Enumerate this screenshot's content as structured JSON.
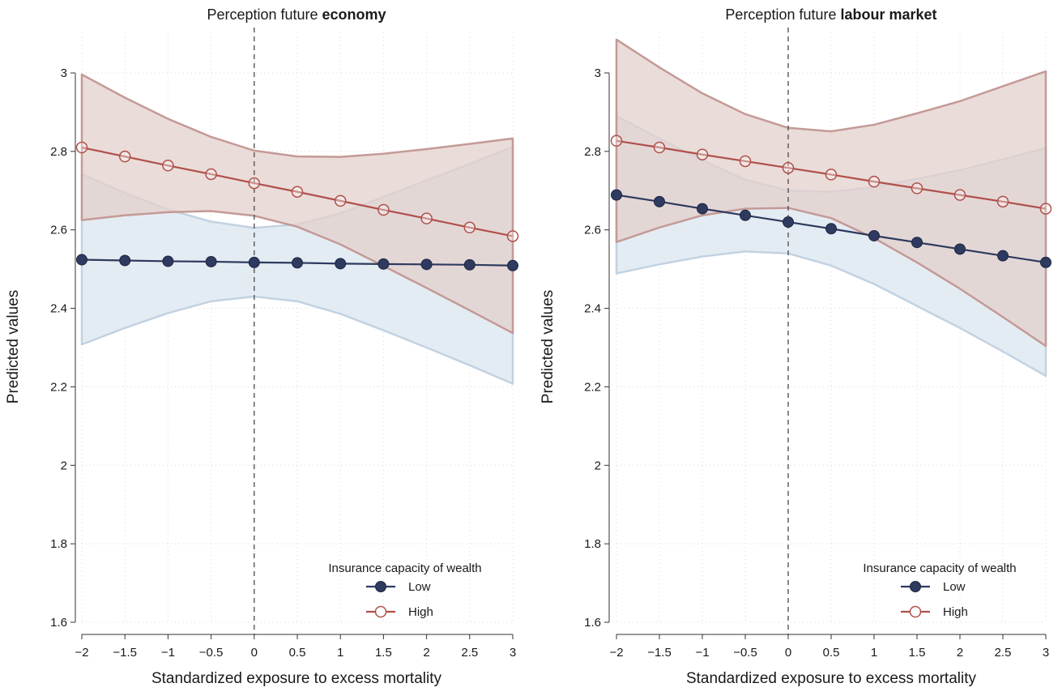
{
  "colors": {
    "low": "#2e3a5f",
    "low_band": "#dbe5ef",
    "low_band_edge": "#c2d2e2",
    "high": "#b0504a",
    "high_band": "#e3d0cc",
    "high_band_edge": "#c49a96",
    "grid": "#d8d8d8",
    "zero_line": "#555555"
  },
  "chart_data": [
    {
      "type": "line",
      "title_prefix": "Perception future ",
      "title_bold": "economy",
      "xlabel": "Standardized exposure to excess mortality",
      "ylabel": "Predicted values",
      "xlim": [
        -2,
        3
      ],
      "ylim": [
        1.6,
        3.1
      ],
      "x": [
        -2,
        -1.5,
        -1,
        -0.5,
        0,
        0.5,
        1,
        1.5,
        2,
        2.5,
        3
      ],
      "x_tick_labels": [
        "−2",
        "−1.5",
        "−1",
        "−0.5",
        "0",
        "0.5",
        "1",
        "1.5",
        "2",
        "2.5",
        "3"
      ],
      "y_ticks": [
        1.6,
        1.8,
        2,
        2.2,
        2.4,
        2.6,
        2.8,
        3
      ],
      "y_tick_labels": [
        "1.6",
        "1.8",
        "2",
        "2.2",
        "2.4",
        "2.6",
        "2.8",
        "3"
      ],
      "grid": true,
      "reference_line_x": 0,
      "legend": {
        "title": "Insurance capacity of wealth",
        "position": "bottom-right"
      },
      "series": [
        {
          "name": "Low",
          "marker": "filled-circle",
          "values": [
            2.524,
            2.522,
            2.52,
            2.519,
            2.517,
            2.516,
            2.514,
            2.513,
            2.512,
            2.511,
            2.509
          ],
          "ci_lower": [
            2.308,
            2.35,
            2.388,
            2.418,
            2.43,
            2.418,
            2.386,
            2.344,
            2.3,
            2.255,
            2.208
          ],
          "ci_upper": [
            2.742,
            2.694,
            2.652,
            2.621,
            2.605,
            2.614,
            2.642,
            2.684,
            2.726,
            2.768,
            2.812
          ]
        },
        {
          "name": "High",
          "marker": "hollow-circle",
          "values": [
            2.81,
            2.787,
            2.764,
            2.742,
            2.719,
            2.697,
            2.674,
            2.651,
            2.629,
            2.606,
            2.584
          ],
          "ci_lower": [
            2.625,
            2.637,
            2.645,
            2.648,
            2.636,
            2.608,
            2.563,
            2.508,
            2.452,
            2.395,
            2.337
          ],
          "ci_upper": [
            2.996,
            2.937,
            2.883,
            2.837,
            2.802,
            2.787,
            2.786,
            2.794,
            2.806,
            2.819,
            2.833
          ]
        }
      ]
    },
    {
      "type": "line",
      "title_prefix": "Perception future ",
      "title_bold": "labour market",
      "xlabel": "Standardized exposure to excess mortality",
      "ylabel": "Predicted values",
      "xlim": [
        -2,
        3
      ],
      "ylim": [
        1.6,
        3.1
      ],
      "x": [
        -2,
        -1.5,
        -1,
        -0.5,
        0,
        0.5,
        1,
        1.5,
        2,
        2.5,
        3
      ],
      "x_tick_labels": [
        "−2",
        "−1.5",
        "−1",
        "−0.5",
        "0",
        "0.5",
        "1",
        "1.5",
        "2",
        "2.5",
        "3"
      ],
      "y_ticks": [
        1.6,
        1.8,
        2,
        2.2,
        2.4,
        2.6,
        2.8,
        3
      ],
      "y_tick_labels": [
        "1.6",
        "1.8",
        "2",
        "2.2",
        "2.4",
        "2.6",
        "2.8",
        "3"
      ],
      "grid": true,
      "reference_line_x": 0,
      "legend": {
        "title": "Insurance capacity of wealth",
        "position": "bottom-right"
      },
      "series": [
        {
          "name": "Low",
          "marker": "filled-circle",
          "values": [
            2.689,
            2.672,
            2.654,
            2.637,
            2.62,
            2.603,
            2.585,
            2.568,
            2.551,
            2.534,
            2.517
          ],
          "ci_lower": [
            2.489,
            2.512,
            2.532,
            2.545,
            2.54,
            2.509,
            2.462,
            2.406,
            2.35,
            2.29,
            2.228
          ],
          "ci_upper": [
            2.89,
            2.833,
            2.777,
            2.728,
            2.7,
            2.697,
            2.709,
            2.73,
            2.752,
            2.78,
            2.808
          ]
        },
        {
          "name": "High",
          "marker": "hollow-circle",
          "values": [
            2.827,
            2.81,
            2.792,
            2.775,
            2.758,
            2.741,
            2.723,
            2.706,
            2.689,
            2.672,
            2.654
          ],
          "ci_lower": [
            2.569,
            2.606,
            2.637,
            2.654,
            2.656,
            2.63,
            2.579,
            2.517,
            2.45,
            2.378,
            2.304
          ],
          "ci_upper": [
            3.085,
            3.014,
            2.948,
            2.895,
            2.86,
            2.851,
            2.868,
            2.897,
            2.928,
            2.966,
            3.004
          ]
        }
      ]
    }
  ]
}
